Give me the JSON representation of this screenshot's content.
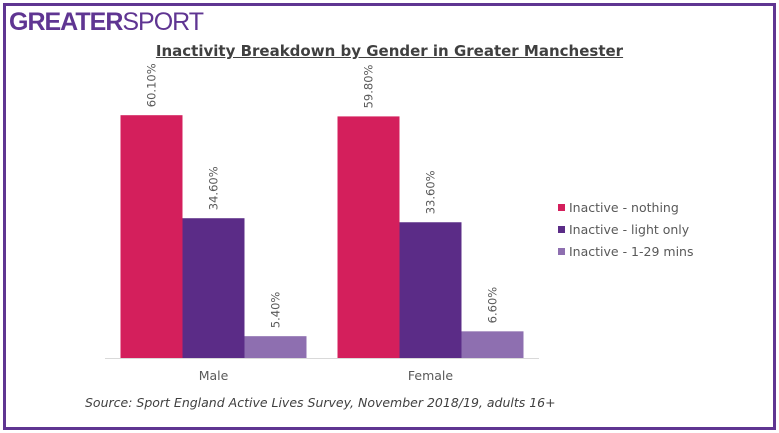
{
  "logo": {
    "bold": "GREATER",
    "light": "SPORT"
  },
  "chart_data": {
    "type": "bar",
    "title": "Inactivity Breakdown by Gender in Greater Manchester",
    "categories": [
      "Male",
      "Female"
    ],
    "series": [
      {
        "name": "Inactive - nothing",
        "values": [
          60.1,
          59.8
        ],
        "labels": [
          "60.10%",
          "59.80%"
        ],
        "color": "#d41f5c"
      },
      {
        "name": "Inactive - light only",
        "values": [
          34.6,
          33.6
        ],
        "labels": [
          "34.60%",
          "33.60%"
        ],
        "color": "#5b2c87"
      },
      {
        "name": "Inactive - 1-29 mins",
        "values": [
          5.4,
          6.6
        ],
        "labels": [
          "5.40%",
          "6.60%"
        ],
        "color": "#8e6fb0"
      }
    ],
    "ylim": [
      0,
      75
    ],
    "grid": false,
    "legend": "right",
    "xlabel": "",
    "ylabel": ""
  },
  "source": "Source: Sport England Active Lives Survey, November 2018/19, adults 16+"
}
